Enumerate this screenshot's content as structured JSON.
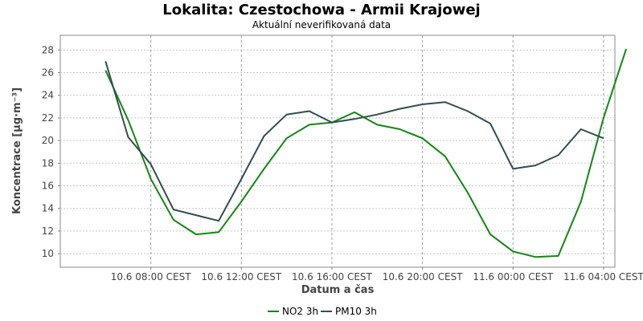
{
  "chart_data": {
    "type": "line",
    "title": "Lokalita: Czestochowa - Armii Krajowej",
    "subtitle": "Aktuální neverifikovaná data",
    "xlabel": "Datum a čas",
    "ylabel": "Koncentrace [µg·m⁻³]",
    "ylim": [
      8.8,
      29.3
    ],
    "yticks": [
      10,
      12,
      14,
      16,
      18,
      20,
      22,
      24,
      26,
      28
    ],
    "xlim": [
      4.0,
      28.5
    ],
    "x_unit": "hours since 10.6 00:00 CEST",
    "xticks": [
      {
        "x": 8,
        "label": "10.6 08:00 CEST"
      },
      {
        "x": 12,
        "label": "10.6 12:00 CEST"
      },
      {
        "x": 16,
        "label": "10.6 16:00 CEST"
      },
      {
        "x": 20,
        "label": "10.6 20:00 CEST"
      },
      {
        "x": 24,
        "label": "11.6 00:00 CEST"
      },
      {
        "x": 28,
        "label": "11.6 04:00 CEST"
      }
    ],
    "grid": true,
    "legend": "bottom",
    "series": [
      {
        "name": "NO2 3h",
        "color": "#118811",
        "x": [
          6,
          7,
          8,
          9,
          10,
          11,
          12,
          13,
          14,
          15,
          16,
          17,
          18,
          19,
          20,
          21,
          22,
          23,
          24,
          25,
          26,
          27,
          28,
          29
        ],
        "values": [
          26.2,
          21.8,
          16.6,
          13.0,
          11.7,
          11.9,
          14.6,
          17.5,
          20.2,
          21.4,
          21.6,
          22.5,
          21.4,
          21.0,
          20.2,
          18.6,
          15.4,
          11.7,
          10.2,
          9.7,
          9.8,
          14.6,
          22.0,
          28.1
        ]
      },
      {
        "name": "PM10 3h",
        "color": "#334d4d",
        "x": [
          6,
          7,
          8,
          9,
          11,
          12,
          13,
          14,
          15,
          16,
          17,
          18,
          19,
          20,
          21,
          22,
          23,
          24,
          25,
          26,
          27,
          28
        ],
        "values": [
          27.0,
          20.3,
          17.9,
          13.9,
          12.9,
          16.6,
          20.4,
          22.3,
          22.6,
          21.6,
          21.9,
          22.3,
          22.8,
          23.2,
          23.4,
          22.6,
          21.5,
          17.5,
          17.8,
          18.7,
          21.0,
          20.2
        ]
      }
    ]
  }
}
